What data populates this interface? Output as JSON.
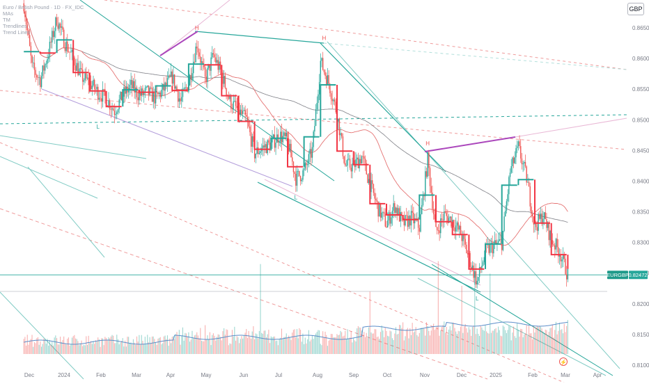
{
  "header": {
    "symbol_text": "Euro / British Pound · 1D · FX_IDC",
    "indicators": [
      "MAs",
      "TM",
      "Trendlines",
      "Trend Lines"
    ],
    "currency": "GBP"
  },
  "chart_data": {
    "type": "candlestick",
    "symbol": "EURGBP",
    "last_price": 0.82472,
    "price_axis": {
      "ylim": [
        0.81,
        0.8665
      ],
      "ticks": [
        0.865,
        0.86,
        0.855,
        0.85,
        0.845,
        0.84,
        0.835,
        0.83,
        0.825,
        0.82,
        0.815,
        0.81
      ]
    },
    "time_axis": {
      "labels": [
        "Dec",
        "2024",
        "Feb",
        "Mar",
        "Apr",
        "May",
        "Jun",
        "Jul",
        "Aug",
        "Sep",
        "Oct",
        "Nov",
        "Dec",
        "2025",
        "Feb",
        "Mar",
        "Apr"
      ]
    },
    "price_path": [
      [
        "2023-11-20",
        0.8755
      ],
      [
        "2023-11-27",
        0.869
      ],
      [
        "2023-12-04",
        0.8585
      ],
      [
        "2023-12-11",
        0.8565
      ],
      [
        "2023-12-18",
        0.861
      ],
      [
        "2023-12-25",
        0.8665
      ],
      [
        "2024-01-01",
        0.8625
      ],
      [
        "2024-01-08",
        0.86
      ],
      [
        "2024-01-15",
        0.857
      ],
      [
        "2024-01-22",
        0.856
      ],
      [
        "2024-01-29",
        0.8545
      ],
      [
        "2024-02-05",
        0.8535
      ],
      [
        "2024-02-12",
        0.8515
      ],
      [
        "2024-02-19",
        0.854
      ],
      [
        "2024-02-26",
        0.8555
      ],
      [
        "2024-03-04",
        0.854
      ],
      [
        "2024-03-11",
        0.8545
      ],
      [
        "2024-03-18",
        0.8535
      ],
      [
        "2024-03-25",
        0.855
      ],
      [
        "2024-04-01",
        0.857
      ],
      [
        "2024-04-08",
        0.853
      ],
      [
        "2024-04-15",
        0.856
      ],
      [
        "2024-04-22",
        0.8625
      ],
      [
        "2024-04-29",
        0.8565
      ],
      [
        "2024-05-06",
        0.8605
      ],
      [
        "2024-05-13",
        0.8575
      ],
      [
        "2024-05-20",
        0.853
      ],
      [
        "2024-05-27",
        0.8515
      ],
      [
        "2024-06-03",
        0.85
      ],
      [
        "2024-06-10",
        0.8445
      ],
      [
        "2024-06-17",
        0.8455
      ],
      [
        "2024-06-24",
        0.846
      ],
      [
        "2024-07-01",
        0.8475
      ],
      [
        "2024-07-08",
        0.8465
      ],
      [
        "2024-07-15",
        0.8405
      ],
      [
        "2024-07-22",
        0.8415
      ],
      [
        "2024-07-29",
        0.845
      ],
      [
        "2024-08-05",
        0.8595
      ],
      [
        "2024-08-12",
        0.856
      ],
      [
        "2024-08-19",
        0.851
      ],
      [
        "2024-08-26",
        0.8425
      ],
      [
        "2024-09-02",
        0.8425
      ],
      [
        "2024-09-09",
        0.844
      ],
      [
        "2024-09-16",
        0.8395
      ],
      [
        "2024-09-23",
        0.8355
      ],
      [
        "2024-09-30",
        0.833
      ],
      [
        "2024-10-07",
        0.836
      ],
      [
        "2024-10-14",
        0.833
      ],
      [
        "2024-10-21",
        0.834
      ],
      [
        "2024-10-28",
        0.8325
      ],
      [
        "2024-11-04",
        0.8435
      ],
      [
        "2024-11-11",
        0.8315
      ],
      [
        "2024-11-18",
        0.8345
      ],
      [
        "2024-11-25",
        0.8335
      ],
      [
        "2024-12-02",
        0.8315
      ],
      [
        "2024-12-09",
        0.8275
      ],
      [
        "2024-12-16",
        0.8235
      ],
      [
        "2024-12-23",
        0.8285
      ],
      [
        "2024-12-30",
        0.8295
      ],
      [
        "2025-01-06",
        0.83
      ],
      [
        "2025-01-13",
        0.8415
      ],
      [
        "2025-01-20",
        0.8455
      ],
      [
        "2025-01-27",
        0.8405
      ],
      [
        "2025-02-03",
        0.8325
      ],
      [
        "2025-02-10",
        0.8345
      ],
      [
        "2025-02-17",
        0.8305
      ],
      [
        "2025-02-24",
        0.8285
      ],
      [
        "2025-03-03",
        0.82472
      ]
    ],
    "swing_markers": [
      [
        "H",
        "2024-04-22",
        0.8643
      ],
      [
        "H",
        "2024-08-08",
        0.8627
      ],
      [
        "H",
        "2024-11-04",
        0.8455
      ],
      [
        "L",
        "2024-01-29",
        0.8497
      ],
      [
        "L",
        "2024-07-15",
        0.8382
      ],
      [
        "L",
        "2024-12-16",
        0.8217
      ]
    ],
    "legend": "none",
    "grid": false
  }
}
